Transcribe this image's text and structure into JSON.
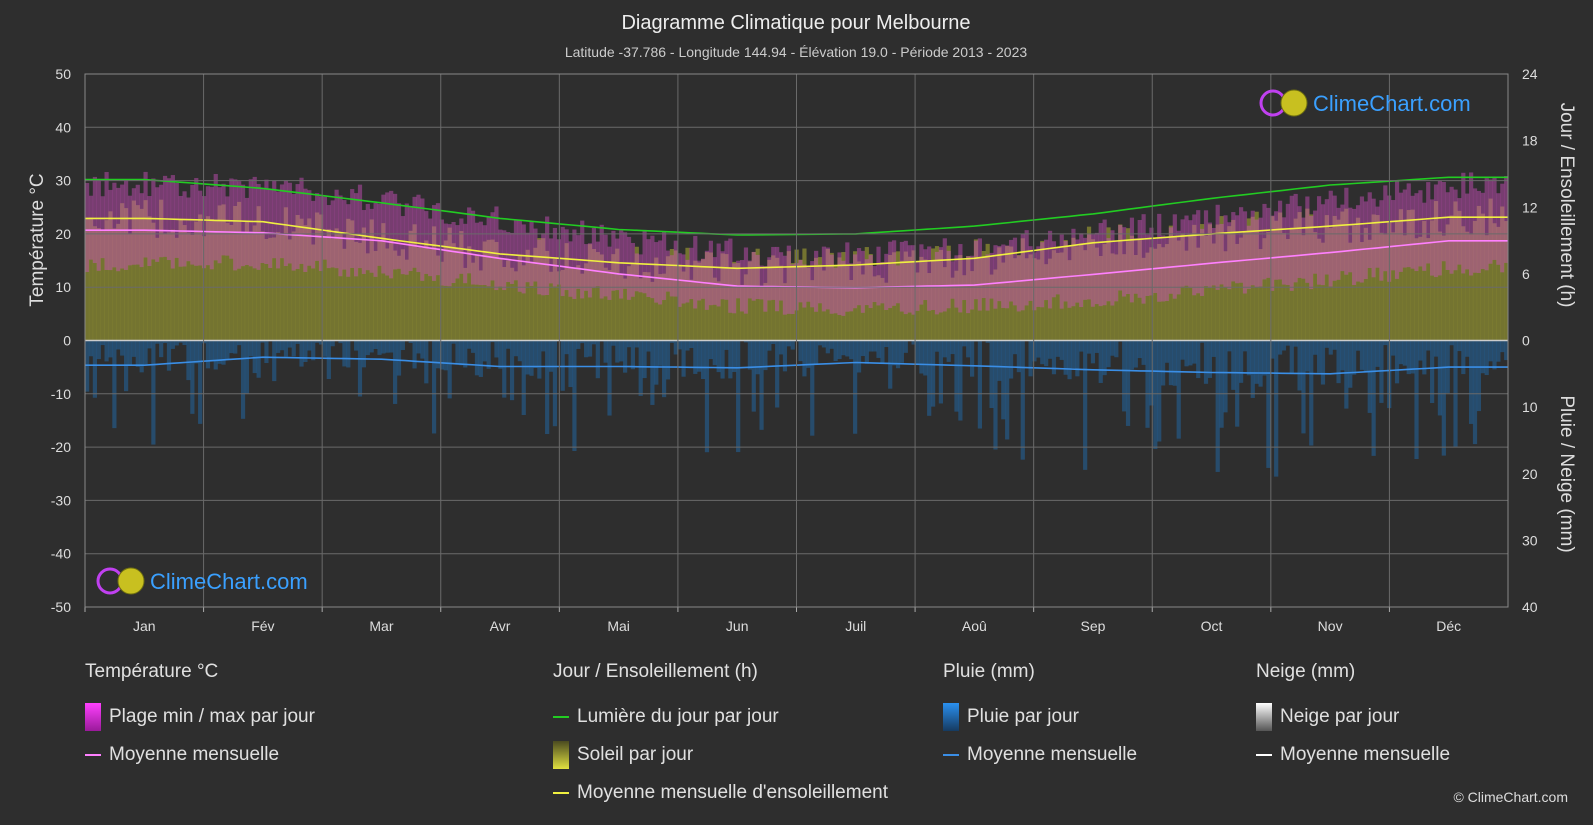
{
  "header": {
    "title": "Diagramme Climatique pour Melbourne",
    "subtitle": "Latitude -37.786 - Longitude 144.94 - Élévation 19.0 - Période 2013 - 2023"
  },
  "logo_text": "ClimeChart.com",
  "copyright": "© ClimeChart.com",
  "colors": {
    "background": "#2e2e2e",
    "temp_range": "#d040c0",
    "temp_mean": "#ff80ff",
    "daylight": "#22cc22",
    "sunshine_bar": "#8a8a30",
    "sunshine_mean": "#f0f040",
    "rain": "#1e78c8",
    "rain_mean": "#3a8ee6",
    "snow_mean": "#ffffff",
    "logo": "#3aa0ff"
  },
  "chart_data": {
    "type": "area",
    "months": [
      "Jan",
      "Fév",
      "Mar",
      "Avr",
      "Mai",
      "Jun",
      "Juil",
      "Aoû",
      "Sep",
      "Oct",
      "Nov",
      "Déc"
    ],
    "y_left": {
      "label": "Température °C",
      "ticks": [
        50,
        40,
        30,
        20,
        10,
        0,
        -10,
        -20,
        -30,
        -40,
        -50
      ],
      "range": [
        -50,
        50
      ]
    },
    "y_right_top": {
      "label": "Jour / Ensoleillement (h)",
      "ticks": [
        24,
        18,
        12,
        6,
        0
      ],
      "range": [
        0,
        24
      ]
    },
    "y_right_bottom": {
      "label": "Pluie / Neige (mm)",
      "ticks": [
        0,
        10,
        20,
        30,
        40
      ],
      "range": [
        0,
        40
      ]
    },
    "grid": true,
    "series": [
      {
        "name": "Lumière du jour par jour",
        "unit": "h",
        "values": [
          14.5,
          13.7,
          12.4,
          11.0,
          10.0,
          9.5,
          9.6,
          10.3,
          11.4,
          12.8,
          14.0,
          14.7
        ]
      },
      {
        "name": "Moyenne mensuelle d'ensoleillement",
        "unit": "h",
        "values": [
          11.0,
          10.7,
          9.2,
          7.8,
          7.0,
          6.5,
          6.8,
          7.4,
          8.8,
          9.6,
          10.3,
          11.1
        ]
      },
      {
        "name": "Moyenne mensuelle",
        "group": "Température °C",
        "unit": "°C",
        "values": [
          20.7,
          20.2,
          18.7,
          15.4,
          12.5,
          10.2,
          9.9,
          10.4,
          12.4,
          14.5,
          16.5,
          18.7
        ]
      },
      {
        "name": "Plage max par jour",
        "group": "Température °C",
        "unit": "°C",
        "values": [
          28.5,
          28.0,
          25.5,
          21.5,
          18.0,
          15.5,
          15.0,
          16.5,
          19.0,
          22.0,
          25.0,
          28.0
        ]
      },
      {
        "name": "Plage min par jour",
        "group": "Température °C",
        "unit": "°C",
        "values": [
          14.5,
          14.5,
          13.0,
          10.5,
          8.5,
          6.5,
          6.0,
          6.5,
          7.5,
          9.5,
          11.5,
          13.5
        ]
      },
      {
        "name": "Moyenne mensuelle",
        "group": "Pluie (mm)",
        "unit": "mm",
        "values": [
          3.7,
          2.5,
          2.8,
          3.9,
          3.9,
          4.1,
          3.3,
          3.8,
          4.4,
          4.8,
          5.0,
          4.0
        ]
      }
    ]
  },
  "legend": {
    "groups": [
      {
        "title": "Température °C",
        "items": [
          {
            "label": "Plage min / max par jour",
            "kind": "box",
            "color": "#d040c0"
          },
          {
            "label": "Moyenne mensuelle",
            "kind": "line",
            "color": "#ff80ff"
          }
        ]
      },
      {
        "title": "Jour / Ensoleillement (h)",
        "items": [
          {
            "label": "Lumière du jour par jour",
            "kind": "line",
            "color": "#22cc22"
          },
          {
            "label": "Soleil par jour",
            "kind": "box",
            "color": "#c8c840"
          },
          {
            "label": "Moyenne mensuelle d'ensoleillement",
            "kind": "line",
            "color": "#f0f040"
          }
        ]
      },
      {
        "title": "Pluie (mm)",
        "items": [
          {
            "label": "Pluie par jour",
            "kind": "box",
            "color": "#1e78c8"
          },
          {
            "label": "Moyenne mensuelle",
            "kind": "line",
            "color": "#3a8ee6"
          }
        ]
      },
      {
        "title": "Neige (mm)",
        "items": [
          {
            "label": "Neige par jour",
            "kind": "box",
            "color": "#dddddd"
          },
          {
            "label": "Moyenne mensuelle",
            "kind": "line",
            "color": "#ffffff"
          }
        ]
      }
    ]
  }
}
